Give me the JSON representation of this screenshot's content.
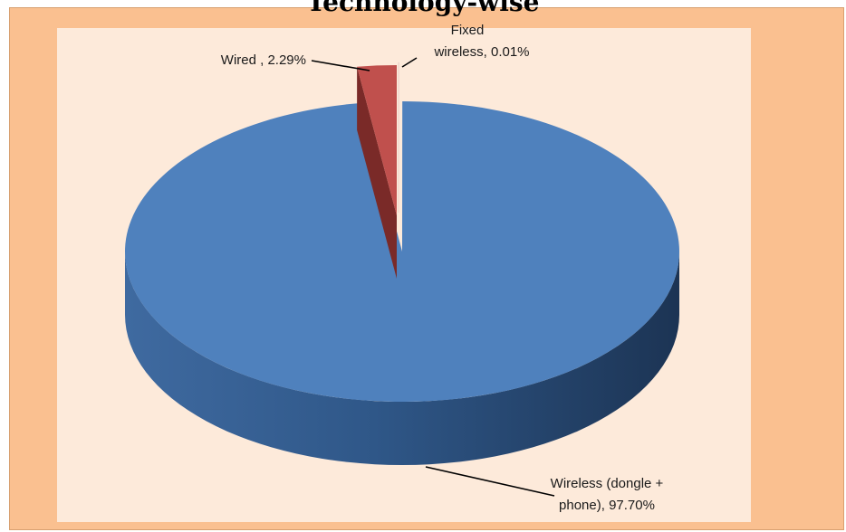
{
  "chart_data": {
    "type": "pie",
    "title": "Technology-wise",
    "categories": [
      "Wired",
      "Fixed wireless",
      "Wireless (dongle + phone)"
    ],
    "values": [
      2.29,
      0.01,
      97.7
    ],
    "unit": "%",
    "legend": "none",
    "data_labels": [
      {
        "lines": [
          "Wired , 2.29%"
        ]
      },
      {
        "lines": [
          "Fixed",
          "wireless, 0.01%"
        ]
      },
      {
        "lines": [
          "Wireless (dongle +",
          "phone), 97.70%"
        ]
      }
    ],
    "colors": [
      "#c0504d",
      "#f2dcdb",
      "#4f81bd"
    ],
    "side_colors": [
      "#7a2a28",
      "#c9a9a8",
      "#2c4d78"
    ]
  }
}
